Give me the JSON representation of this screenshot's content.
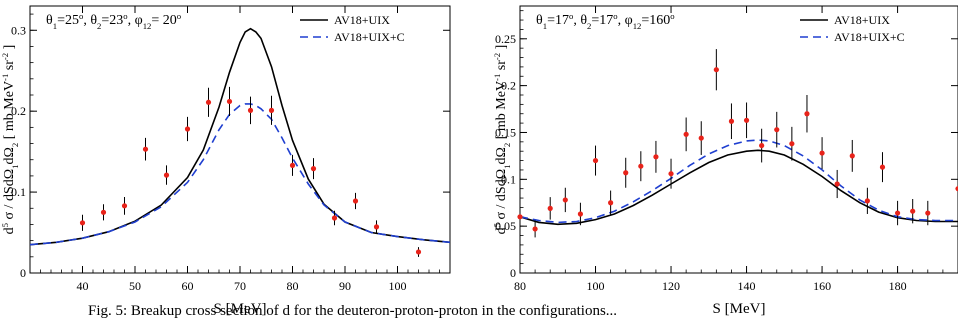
{
  "chart_data": [
    {
      "type": "scatter",
      "title_parts": {
        "t1": "θ",
        "t1s": "1",
        "t1v": "=25",
        "t2": ", θ",
        "t2s": "2",
        "t2v": "=23",
        "t3": ", φ",
        "t3s": "12",
        "t3v": "= 20"
      },
      "xlabel": "S [MeV]",
      "ylabel_parts": {
        "a": "d",
        "as": "5",
        "b": " σ / dSdΩ",
        "bs": "1",
        "c": "dΩ",
        "cs": "2",
        "d": " [ mb MeV",
        "ds": "-1",
        "e": " sr",
        "es": "-2",
        "f": " ]"
      },
      "xlim": [
        30,
        110
      ],
      "ylim": [
        0,
        0.33
      ],
      "xticks": [
        40,
        50,
        60,
        70,
        80,
        90,
        100
      ],
      "xtick_labels": [
        "40",
        "50",
        "60",
        "70",
        "80",
        "90",
        "100"
      ],
      "yticks": [
        0,
        0.1,
        0.2,
        0.3
      ],
      "ytick_labels": [
        "0",
        "0.1",
        "0.2",
        "0.3"
      ],
      "legend": [
        "AV18+UIX",
        "AV18+UIX+C"
      ],
      "legend_position": "top-right",
      "series": [
        {
          "name": "AV18+UIX",
          "style": "solid",
          "color": "#000000",
          "x": [
            30,
            35,
            40,
            45,
            50,
            55,
            60,
            63,
            66,
            68,
            70,
            71,
            72,
            73,
            74,
            76,
            78,
            80,
            83,
            86,
            90,
            95,
            100,
            105,
            110
          ],
          "y": [
            0.035,
            0.038,
            0.043,
            0.051,
            0.064,
            0.084,
            0.118,
            0.152,
            0.205,
            0.248,
            0.285,
            0.298,
            0.302,
            0.298,
            0.29,
            0.255,
            0.207,
            0.164,
            0.116,
            0.085,
            0.063,
            0.05,
            0.045,
            0.041,
            0.038
          ]
        },
        {
          "name": "AV18+UIX+C",
          "style": "dashed",
          "color": "#1f3fd0",
          "x": [
            30,
            35,
            40,
            45,
            50,
            55,
            60,
            63,
            66,
            68,
            70,
            71,
            72,
            73,
            74,
            76,
            78,
            80,
            83,
            86,
            90,
            95,
            100,
            105,
            110
          ],
          "y": [
            0.035,
            0.038,
            0.043,
            0.051,
            0.063,
            0.082,
            0.112,
            0.14,
            0.177,
            0.196,
            0.207,
            0.209,
            0.209,
            0.207,
            0.203,
            0.19,
            0.167,
            0.142,
            0.11,
            0.084,
            0.063,
            0.05,
            0.045,
            0.041,
            0.038
          ]
        }
      ],
      "data": {
        "color": "#e8231a",
        "x": [
          40,
          44,
          48,
          52,
          56,
          60,
          64,
          68,
          72,
          76,
          80,
          84,
          88,
          92,
          96,
          104
        ],
        "y": [
          0.062,
          0.075,
          0.083,
          0.153,
          0.121,
          0.178,
          0.211,
          0.212,
          0.201,
          0.201,
          0.133,
          0.129,
          0.068,
          0.089,
          0.057,
          0.026
        ],
        "err": [
          0.01,
          0.01,
          0.011,
          0.014,
          0.012,
          0.015,
          0.018,
          0.018,
          0.017,
          0.018,
          0.013,
          0.013,
          0.009,
          0.01,
          0.008,
          0.006
        ]
      }
    },
    {
      "type": "scatter",
      "title_parts": {
        "t1": "θ",
        "t1s": "1",
        "t1v": "=17",
        "t2": ", θ",
        "t2s": "2",
        "t2v": "=17",
        "t3": ", φ",
        "t3s": "12",
        "t3v": "=160"
      },
      "xlabel": "S [MeV]",
      "ylabel_parts": {
        "a": "d",
        "as": "5",
        "b": " σ / dSdΩ",
        "bs": "1",
        "c": "dΩ",
        "cs": "2",
        "d": " [ mb MeV",
        "ds": "-1",
        "e": " sr",
        "es": "-2",
        "f": " ]"
      },
      "xlim": [
        80,
        196
      ],
      "ylim": [
        0,
        0.285
      ],
      "xticks": [
        80,
        100,
        120,
        140,
        160,
        180
      ],
      "xtick_labels": [
        "80",
        "100",
        "120",
        "140",
        "160",
        "180"
      ],
      "yticks": [
        0,
        0.05,
        0.1,
        0.15,
        0.2,
        0.25
      ],
      "ytick_labels": [
        "0",
        "0.05",
        "0.1",
        "0.15",
        "0.2",
        "0.25"
      ],
      "legend": [
        "AV18+UIX",
        "AV18+UIX+C"
      ],
      "legend_position": "top-right",
      "series": [
        {
          "name": "AV18+UIX",
          "style": "solid",
          "color": "#000000",
          "x": [
            80,
            85,
            90,
            95,
            100,
            105,
            110,
            115,
            120,
            125,
            130,
            135,
            140,
            143,
            146,
            150,
            155,
            160,
            165,
            170,
            175,
            180,
            185,
            190,
            196
          ],
          "y": [
            0.06,
            0.054,
            0.052,
            0.053,
            0.057,
            0.063,
            0.072,
            0.083,
            0.095,
            0.107,
            0.118,
            0.126,
            0.13,
            0.131,
            0.13,
            0.126,
            0.116,
            0.103,
            0.088,
            0.075,
            0.065,
            0.059,
            0.056,
            0.055,
            0.055
          ]
        },
        {
          "name": "AV18+UIX+C",
          "style": "dashed",
          "color": "#1f3fd0",
          "x": [
            80,
            85,
            90,
            95,
            100,
            105,
            110,
            115,
            120,
            125,
            130,
            135,
            140,
            143,
            146,
            150,
            155,
            160,
            165,
            170,
            175,
            180,
            185,
            190,
            196
          ],
          "y": [
            0.06,
            0.056,
            0.054,
            0.055,
            0.059,
            0.066,
            0.076,
            0.088,
            0.101,
            0.115,
            0.127,
            0.136,
            0.141,
            0.142,
            0.141,
            0.136,
            0.125,
            0.11,
            0.093,
            0.078,
            0.067,
            0.06,
            0.057,
            0.056,
            0.056
          ]
        }
      ],
      "data": {
        "color": "#e8231a",
        "x": [
          80,
          84,
          88,
          92,
          96,
          100,
          104,
          108,
          112,
          116,
          120,
          124,
          128,
          132,
          136,
          140,
          144,
          148,
          152,
          156,
          160,
          164,
          168,
          172,
          176,
          180,
          184,
          188,
          196
        ],
        "y": [
          0.06,
          0.047,
          0.069,
          0.078,
          0.063,
          0.12,
          0.075,
          0.107,
          0.114,
          0.124,
          0.106,
          0.148,
          0.144,
          0.217,
          0.162,
          0.163,
          0.136,
          0.153,
          0.138,
          0.17,
          0.128,
          0.095,
          0.125,
          0.077,
          0.113,
          0.064,
          0.066,
          0.064,
          0.09
        ],
        "err": [
          0.01,
          0.009,
          0.012,
          0.013,
          0.012,
          0.016,
          0.013,
          0.016,
          0.016,
          0.017,
          0.016,
          0.018,
          0.018,
          0.022,
          0.019,
          0.019,
          0.018,
          0.019,
          0.018,
          0.02,
          0.017,
          0.015,
          0.017,
          0.014,
          0.016,
          0.013,
          0.013,
          0.013,
          0.015
        ]
      }
    }
  ],
  "caption": "Fig. 5: Breakup cross section of d for the deuteron-proton-proton in the configurations..."
}
